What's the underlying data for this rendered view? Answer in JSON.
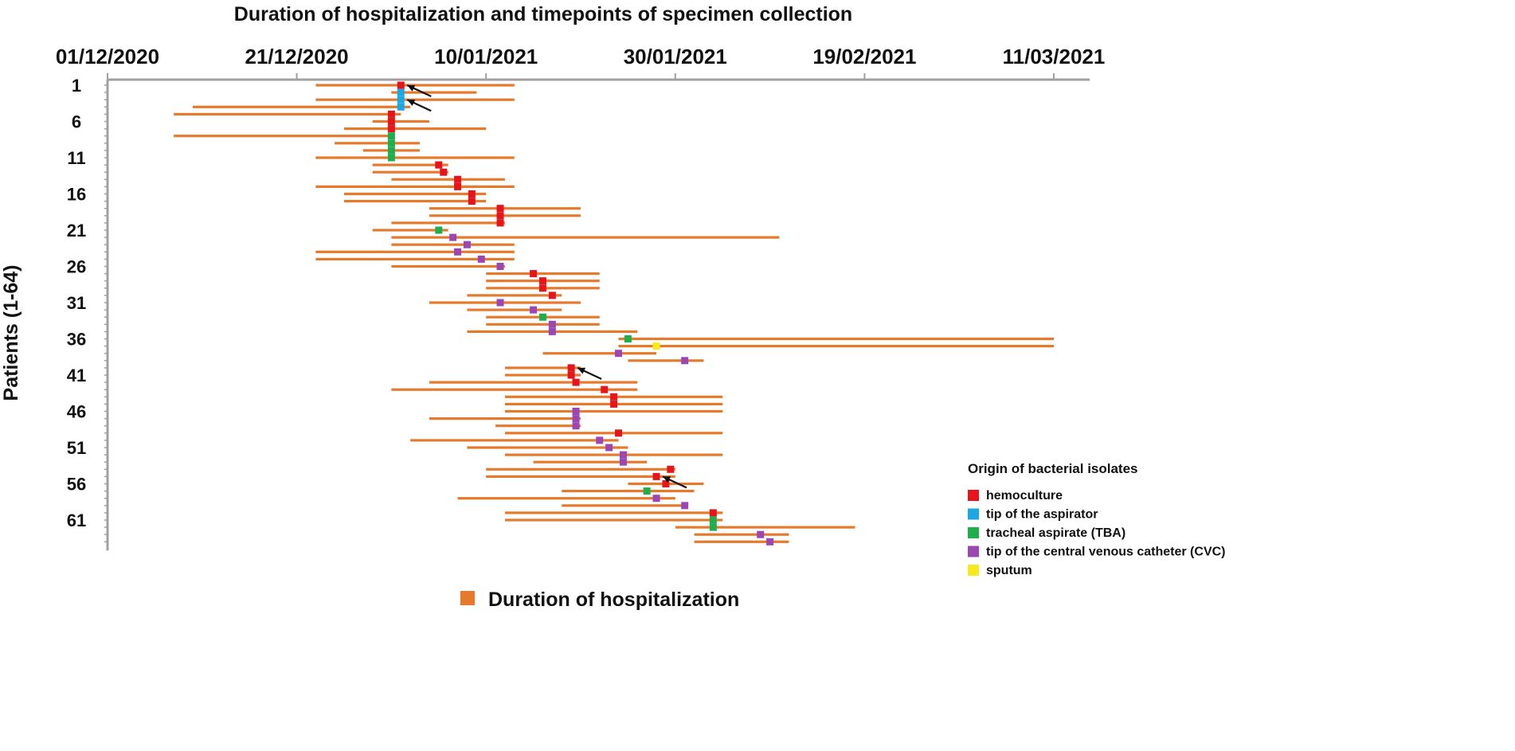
{
  "chart_data": {
    "type": "gantt",
    "title": "Duration of hospitalization and timepoints of specimen collection",
    "ylabel": "Patients (1-64)",
    "x_unit": "days since 01/12/2020",
    "xlim": [
      0,
      100
    ],
    "x_ticks": [
      {
        "day": 0,
        "label": "01/12/2020"
      },
      {
        "day": 20,
        "label": "21/12/2020"
      },
      {
        "day": 40,
        "label": "10/01/2021"
      },
      {
        "day": 60,
        "label": "30/01/2021"
      },
      {
        "day": 80,
        "label": "19/02/2021"
      },
      {
        "day": 100,
        "label": "11/03/2021"
      }
    ],
    "y_tick_labels": [
      "1",
      "6",
      "11",
      "16",
      "21",
      "26",
      "31",
      "36",
      "41",
      "46",
      "51",
      "56",
      "61"
    ],
    "y_ticks_at_patients": [
      1,
      6,
      11,
      16,
      21,
      26,
      31,
      36,
      41,
      46,
      51,
      56,
      61
    ],
    "patient_count": 64,
    "origin_colors": {
      "hemoculture": "#e8141c",
      "aspirator": "#1aa7e6",
      "tba": "#1fae4c",
      "cvc": "#9c46b4",
      "sputum": "#f8ea1a"
    },
    "bar_color": "#e57a2c",
    "patients": [
      {
        "start": 22,
        "end": 43,
        "sample": 31,
        "origin": "hemoculture"
      },
      {
        "start": 30,
        "end": 39,
        "sample": 31,
        "origin": "aspirator"
      },
      {
        "start": 22,
        "end": 43,
        "sample": 31,
        "origin": "aspirator"
      },
      {
        "start": 9,
        "end": 32,
        "sample": 31,
        "origin": "aspirator"
      },
      {
        "start": 7,
        "end": 31,
        "sample": 30,
        "origin": "hemoculture"
      },
      {
        "start": 28,
        "end": 34,
        "sample": 30,
        "origin": "hemoculture"
      },
      {
        "start": 25,
        "end": 40,
        "sample": 30,
        "origin": "hemoculture"
      },
      {
        "start": 7,
        "end": 30,
        "sample": 30,
        "origin": "tba"
      },
      {
        "start": 24,
        "end": 33,
        "sample": 30,
        "origin": "tba"
      },
      {
        "start": 27,
        "end": 33,
        "sample": 30,
        "origin": "tba"
      },
      {
        "start": 22,
        "end": 43,
        "sample": 30,
        "origin": "tba"
      },
      {
        "start": 28,
        "end": 36,
        "sample": 35,
        "origin": "hemoculture"
      },
      {
        "start": 28,
        "end": 36,
        "sample": 35.5,
        "origin": "hemoculture"
      },
      {
        "start": 30,
        "end": 42,
        "sample": 37,
        "origin": "hemoculture"
      },
      {
        "start": 22,
        "end": 43,
        "sample": 37,
        "origin": "hemoculture"
      },
      {
        "start": 25,
        "end": 40,
        "sample": 38.5,
        "origin": "hemoculture"
      },
      {
        "start": 25,
        "end": 40,
        "sample": 38.5,
        "origin": "hemoculture"
      },
      {
        "start": 34,
        "end": 50,
        "sample": 41.5,
        "origin": "hemoculture"
      },
      {
        "start": 34,
        "end": 50,
        "sample": 41.5,
        "origin": "hemoculture"
      },
      {
        "start": 30,
        "end": 42,
        "sample": 41.5,
        "origin": "hemoculture"
      },
      {
        "start": 28,
        "end": 36,
        "sample": 35,
        "origin": "tba"
      },
      {
        "start": 30,
        "end": 71,
        "sample": 36.5,
        "origin": "cvc"
      },
      {
        "start": 30,
        "end": 43,
        "sample": 38,
        "origin": "cvc"
      },
      {
        "start": 22,
        "end": 43,
        "sample": 37,
        "origin": "cvc"
      },
      {
        "start": 22,
        "end": 43,
        "sample": 39.5,
        "origin": "cvc"
      },
      {
        "start": 30,
        "end": 42,
        "sample": 41.5,
        "origin": "cvc"
      },
      {
        "start": 40,
        "end": 52,
        "sample": 45,
        "origin": "hemoculture"
      },
      {
        "start": 40,
        "end": 52,
        "sample": 46,
        "origin": "hemoculture"
      },
      {
        "start": 40,
        "end": 52,
        "sample": 46,
        "origin": "hemoculture"
      },
      {
        "start": 38,
        "end": 48,
        "sample": 47,
        "origin": "hemoculture"
      },
      {
        "start": 34,
        "end": 50,
        "sample": 41.5,
        "origin": "cvc"
      },
      {
        "start": 38,
        "end": 48,
        "sample": 45,
        "origin": "cvc"
      },
      {
        "start": 40,
        "end": 52,
        "sample": 46,
        "origin": "tba"
      },
      {
        "start": 40,
        "end": 52,
        "sample": 47,
        "origin": "cvc"
      },
      {
        "start": 38,
        "end": 56,
        "sample": 47,
        "origin": "cvc"
      },
      {
        "start": 54,
        "end": 100,
        "sample": 55,
        "origin": "tba"
      },
      {
        "start": 54,
        "end": 100,
        "sample": 58,
        "origin": "sputum"
      },
      {
        "start": 46,
        "end": 58,
        "sample": 54,
        "origin": "cvc"
      },
      {
        "start": 55,
        "end": 63,
        "sample": 61,
        "origin": "cvc"
      },
      {
        "start": 42,
        "end": 50,
        "sample": 49,
        "origin": "hemoculture"
      },
      {
        "start": 42,
        "end": 50,
        "sample": 49,
        "origin": "hemoculture"
      },
      {
        "start": 34,
        "end": 56,
        "sample": 49.5,
        "origin": "hemoculture"
      },
      {
        "start": 30,
        "end": 56,
        "sample": 52.5,
        "origin": "hemoculture"
      },
      {
        "start": 42,
        "end": 65,
        "sample": 53.5,
        "origin": "hemoculture"
      },
      {
        "start": 42,
        "end": 65,
        "sample": 53.5,
        "origin": "hemoculture"
      },
      {
        "start": 42,
        "end": 65,
        "sample": 49.5,
        "origin": "cvc"
      },
      {
        "start": 34,
        "end": 50,
        "sample": 49.5,
        "origin": "cvc"
      },
      {
        "start": 41,
        "end": 50,
        "sample": 49.5,
        "origin": "cvc"
      },
      {
        "start": 42,
        "end": 65,
        "sample": 54,
        "origin": "hemoculture"
      },
      {
        "start": 32,
        "end": 54,
        "sample": 52,
        "origin": "cvc"
      },
      {
        "start": 38,
        "end": 55,
        "sample": 53,
        "origin": "cvc"
      },
      {
        "start": 42,
        "end": 65,
        "sample": 54.5,
        "origin": "cvc"
      },
      {
        "start": 45,
        "end": 57,
        "sample": 54.5,
        "origin": "cvc"
      },
      {
        "start": 40,
        "end": 60,
        "sample": 59.5,
        "origin": "hemoculture"
      },
      {
        "start": 40,
        "end": 60,
        "sample": 58,
        "origin": "hemoculture"
      },
      {
        "start": 55,
        "end": 63,
        "sample": 59,
        "origin": "hemoculture"
      },
      {
        "start": 48,
        "end": 62,
        "sample": 57,
        "origin": "tba"
      },
      {
        "start": 37,
        "end": 60,
        "sample": 58,
        "origin": "cvc"
      },
      {
        "start": 48,
        "end": 61,
        "sample": 61,
        "origin": "cvc"
      },
      {
        "start": 42,
        "end": 65,
        "sample": 64,
        "origin": "hemoculture"
      },
      {
        "start": 42,
        "end": 65,
        "sample": 64,
        "origin": "tba"
      },
      {
        "start": 60,
        "end": 79,
        "sample": 64,
        "origin": "tba"
      },
      {
        "start": 62,
        "end": 72,
        "sample": 69,
        "origin": "cvc"
      },
      {
        "start": 62,
        "end": 72,
        "sample": 70,
        "origin": "cvc"
      }
    ],
    "arrows_at_patients": [
      1,
      3,
      40,
      55
    ],
    "legend": {
      "title": "Origin of bacterial isolates",
      "items": [
        {
          "key": "hemoculture",
          "label": "hemoculture"
        },
        {
          "key": "aspirator",
          "label": "tip of the aspirator"
        },
        {
          "key": "tba",
          "label": "tracheal aspirate (TBA)"
        },
        {
          "key": "cvc",
          "label": "tip of the central venous catheter (CVC)"
        },
        {
          "key": "sputum",
          "label": "sputum"
        }
      ]
    },
    "bottom_legend": "Duration of hospitalization"
  }
}
